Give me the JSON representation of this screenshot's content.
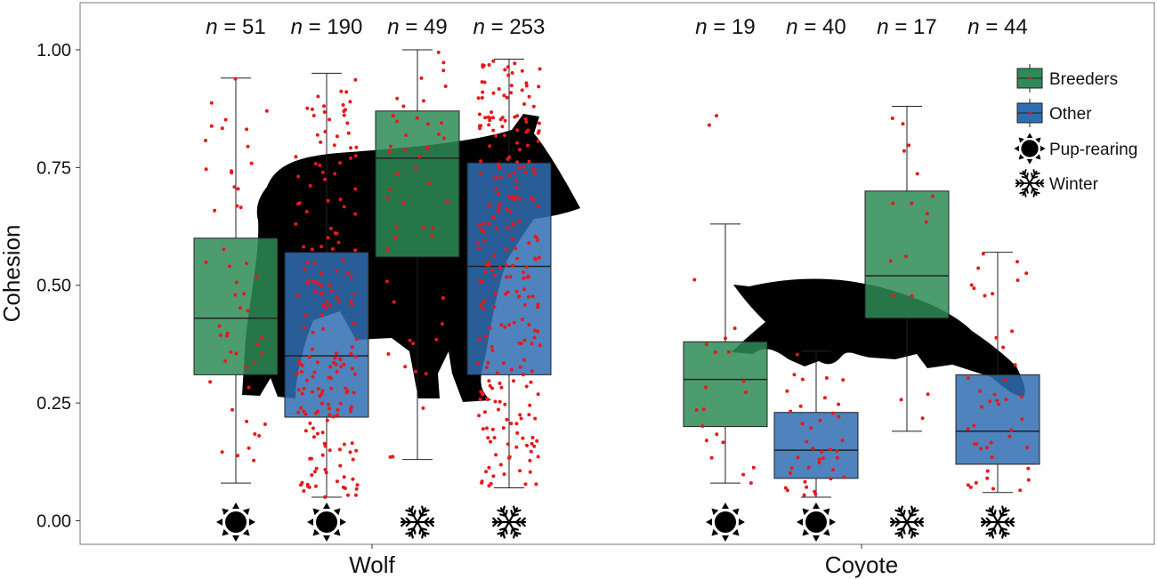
{
  "chart_data": {
    "type": "box",
    "ylabel": "Cohesion",
    "xlabel": "",
    "ylim": [
      -0.05,
      1.1
    ],
    "yticks": [
      "0.00",
      "0.25",
      "0.50",
      "0.75",
      "1.00"
    ],
    "ytick_values": [
      0,
      0.25,
      0.5,
      0.75,
      1.0
    ],
    "categories": [
      "Wolf",
      "Coyote"
    ],
    "grid": false,
    "legend_position": "top-right",
    "legend": [
      {
        "label": "Breeders",
        "kind": "box",
        "color": "#2e8b57"
      },
      {
        "label": "Other",
        "kind": "box",
        "color": "#2f6db2"
      },
      {
        "label": "Pup-rearing",
        "kind": "sun-icon"
      },
      {
        "label": "Winter",
        "kind": "snowflake-icon"
      }
    ],
    "colors": {
      "Breeders": "#2e8b57",
      "Other": "#2f6db2",
      "points": "#e8191b",
      "silhouette": "#000000"
    },
    "boxes": [
      {
        "species": "Wolf",
        "group": "Breeders",
        "season": "Pup-rearing",
        "n_label": "n = 51",
        "whisker_low": 0.08,
        "q1": 0.31,
        "median": 0.43,
        "q3": 0.6,
        "whisker_high": 0.94
      },
      {
        "species": "Wolf",
        "group": "Other",
        "season": "Pup-rearing",
        "n_label": "n = 190",
        "whisker_low": 0.05,
        "q1": 0.22,
        "median": 0.35,
        "q3": 0.57,
        "whisker_high": 0.95
      },
      {
        "species": "Wolf",
        "group": "Breeders",
        "season": "Winter",
        "n_label": "n = 49",
        "whisker_low": 0.13,
        "q1": 0.56,
        "median": 0.77,
        "q3": 0.87,
        "whisker_high": 1.0
      },
      {
        "species": "Wolf",
        "group": "Other",
        "season": "Winter",
        "n_label": "n = 253",
        "whisker_low": 0.07,
        "q1": 0.31,
        "median": 0.54,
        "q3": 0.76,
        "whisker_high": 0.98
      },
      {
        "species": "Coyote",
        "group": "Breeders",
        "season": "Pup-rearing",
        "n_label": "n = 19",
        "whisker_low": 0.08,
        "q1": 0.2,
        "median": 0.3,
        "q3": 0.38,
        "whisker_high": 0.63
      },
      {
        "species": "Coyote",
        "group": "Other",
        "season": "Pup-rearing",
        "n_label": "n = 40",
        "whisker_low": 0.05,
        "q1": 0.09,
        "median": 0.15,
        "q3": 0.23,
        "whisker_high": 0.36
      },
      {
        "species": "Coyote",
        "group": "Breeders",
        "season": "Winter",
        "n_label": "n = 17",
        "whisker_low": 0.19,
        "q1": 0.43,
        "median": 0.52,
        "q3": 0.7,
        "whisker_high": 0.88
      },
      {
        "species": "Coyote",
        "group": "Other",
        "season": "Winter",
        "n_label": "n = 44",
        "whisker_low": 0.06,
        "q1": 0.12,
        "median": 0.19,
        "q3": 0.31,
        "whisker_high": 0.57
      }
    ],
    "outliers": [
      {
        "box": 4,
        "y": 0.84
      },
      {
        "box": 4,
        "y": 0.86
      }
    ]
  }
}
